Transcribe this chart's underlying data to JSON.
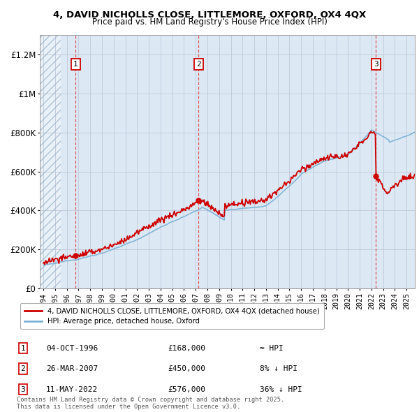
{
  "title_line1": "4, DAVID NICHOLLS CLOSE, LITTLEMORE, OXFORD, OX4 4QX",
  "title_line2": "Price paid vs. HM Land Registry's House Price Index (HPI)",
  "ylim": [
    0,
    1300000
  ],
  "yticks": [
    0,
    200000,
    400000,
    600000,
    800000,
    1000000,
    1200000
  ],
  "ytick_labels": [
    "£0",
    "£200K",
    "£400K",
    "£600K",
    "£800K",
    "£1M",
    "£1.2M"
  ],
  "xlim_start": 1993.7,
  "xlim_end": 2025.7,
  "xticks": [
    1994,
    1995,
    1996,
    1997,
    1998,
    1999,
    2000,
    2001,
    2002,
    2003,
    2004,
    2005,
    2006,
    2007,
    2008,
    2009,
    2010,
    2011,
    2012,
    2013,
    2014,
    2015,
    2016,
    2017,
    2018,
    2019,
    2020,
    2021,
    2022,
    2023,
    2024,
    2025
  ],
  "red_line_color": "#cc0000",
  "blue_line_color": "#7ab0d4",
  "bg_color": "#dce9f5",
  "grid_color": "#c0c8d8",
  "sale_dates": [
    1996.75,
    2007.23,
    2022.37
  ],
  "sale_prices": [
    168000,
    450000,
    576000
  ],
  "sale_labels": [
    "1",
    "2",
    "3"
  ],
  "legend_label_red": "4, DAVID NICHOLLS CLOSE, LITTLEMORE, OXFORD, OX4 4QX (detached house)",
  "legend_label_blue": "HPI: Average price, detached house, Oxford",
  "table_data": [
    [
      "1",
      "04-OCT-1996",
      "£168,000",
      "≈ HPI"
    ],
    [
      "2",
      "26-MAR-2007",
      "£450,000",
      "8% ↓ HPI"
    ],
    [
      "3",
      "11-MAY-2022",
      "£576,000",
      "36% ↓ HPI"
    ]
  ],
  "footer": "Contains HM Land Registry data © Crown copyright and database right 2025.\nThis data is licensed under the Open Government Licence v3.0."
}
